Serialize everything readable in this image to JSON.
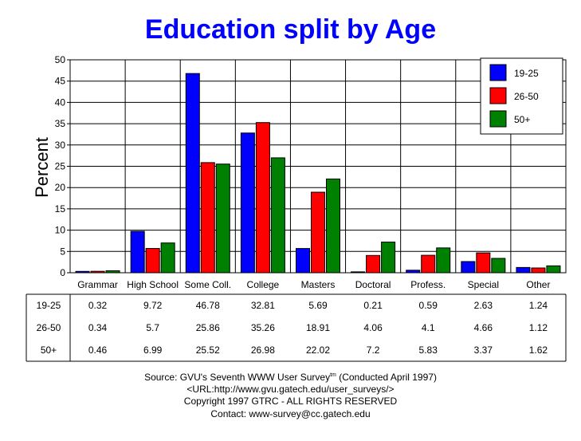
{
  "title": "Education split by Age",
  "colors": {
    "19-25": "#0000ff",
    "26-50": "#ff0000",
    "50+": "#008000"
  },
  "chart_data": {
    "type": "bar",
    "title": "Education split by Age",
    "xlabel": "",
    "ylabel": "Percent",
    "ylim": [
      0,
      50
    ],
    "yticks": [
      0,
      5,
      10,
      15,
      20,
      25,
      30,
      35,
      40,
      45,
      50
    ],
    "grid": true,
    "legend_position": "top-right",
    "categories": [
      "Grammar",
      "High School",
      "Some Coll.",
      "College",
      "Masters",
      "Doctoral",
      "Profess.",
      "Special",
      "Other"
    ],
    "series": [
      {
        "name": "19-25",
        "color": "#0000ff",
        "values": [
          0.32,
          9.72,
          46.78,
          32.81,
          5.69,
          0.21,
          0.59,
          2.63,
          1.24
        ]
      },
      {
        "name": "26-50",
        "color": "#ff0000",
        "values": [
          0.34,
          5.7,
          25.86,
          35.26,
          18.91,
          4.06,
          4.1,
          4.66,
          1.12
        ]
      },
      {
        "name": "50+",
        "color": "#008000",
        "values": [
          0.46,
          6.99,
          25.52,
          26.98,
          22.02,
          7.2,
          5.83,
          3.37,
          1.62
        ]
      }
    ]
  },
  "footer": {
    "source": "Source: GVU's Seventh WWW User Survey",
    "tm": "tm",
    "conducted": " (Conducted April 1997)",
    "url": "<URL:http://www.gvu.gatech.edu/user_surveys/>",
    "copyright": "Copyright 1997 GTRC - ALL RIGHTS RESERVED",
    "contact": "Contact: www-survey@cc.gatech.edu"
  }
}
